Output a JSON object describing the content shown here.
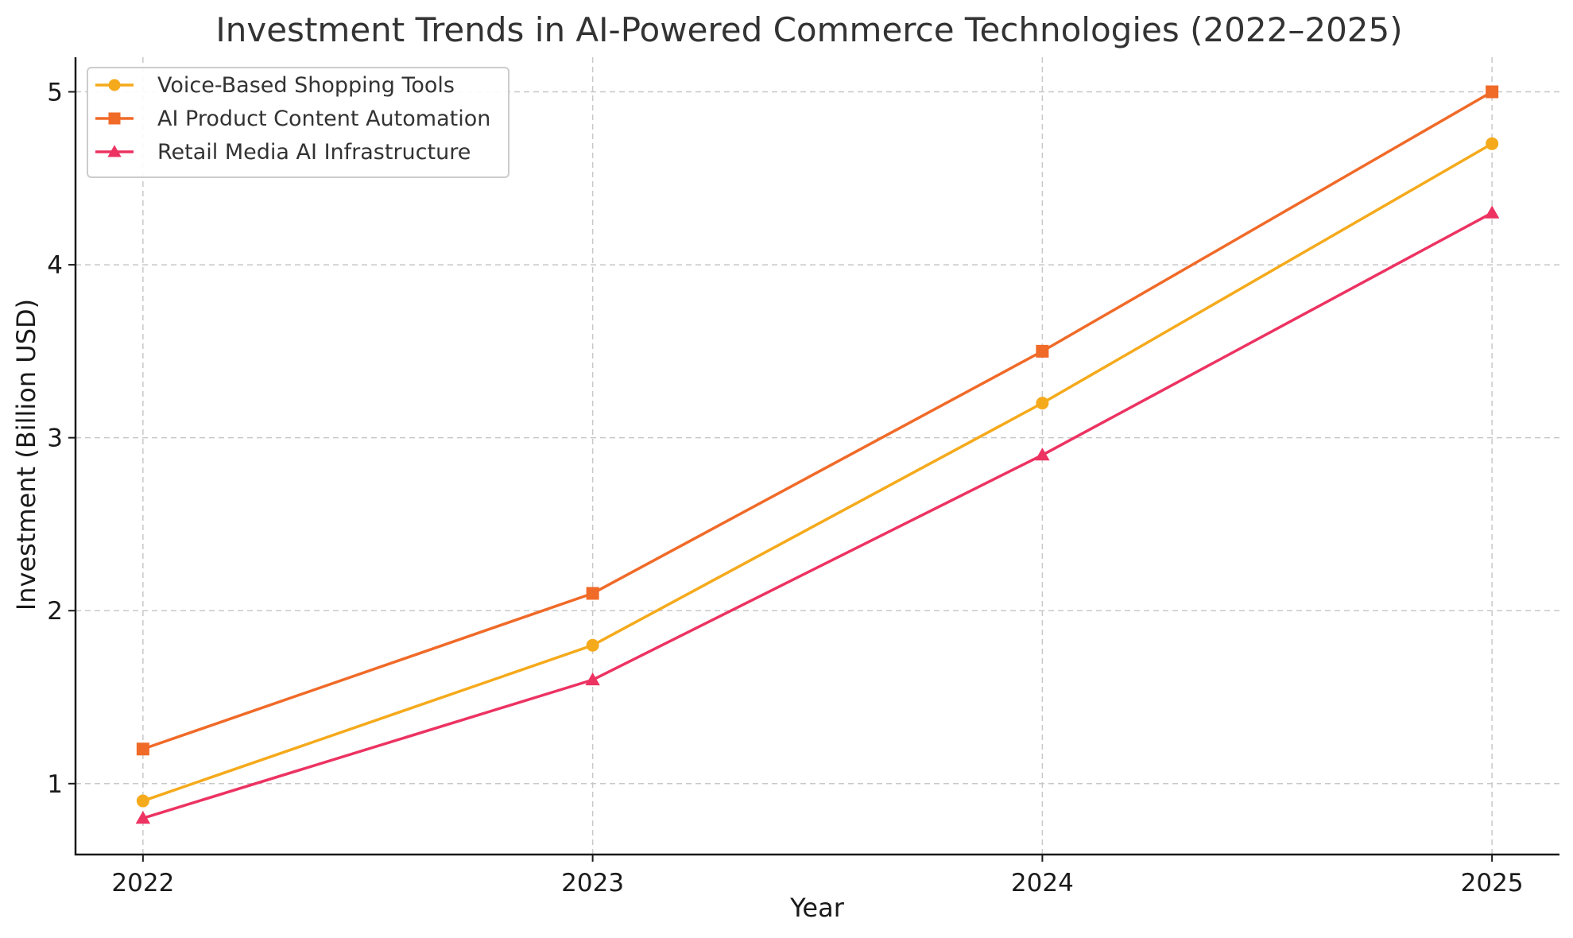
{
  "chart_data": {
    "type": "line",
    "title": "Investment Trends in AI-Powered Commerce Technologies (2022–2025)",
    "xlabel": "Year",
    "ylabel": "Investment (Billion USD)",
    "categories": [
      "2022",
      "2023",
      "2024",
      "2025"
    ],
    "x": [
      2022,
      2023,
      2024,
      2025
    ],
    "xlim": [
      2021.85,
      2025.15
    ],
    "ylim": [
      0.59,
      5.2
    ],
    "yticks": [
      1,
      2,
      3,
      4,
      5
    ],
    "grid": true,
    "legend_position": "top-left",
    "series": [
      {
        "name": "Voice-Based Shopping Tools",
        "values": [
          0.9,
          1.8,
          3.2,
          4.7
        ],
        "color": "#f5aa1c",
        "marker": "circle"
      },
      {
        "name": "AI Product Content Automation",
        "values": [
          1.2,
          2.1,
          3.5,
          5.0
        ],
        "color": "#f06a28",
        "marker": "square"
      },
      {
        "name": "Retail Media AI Infrastructure",
        "values": [
          0.8,
          1.6,
          2.9,
          4.3
        ],
        "color": "#ec3362",
        "marker": "triangle"
      }
    ]
  }
}
